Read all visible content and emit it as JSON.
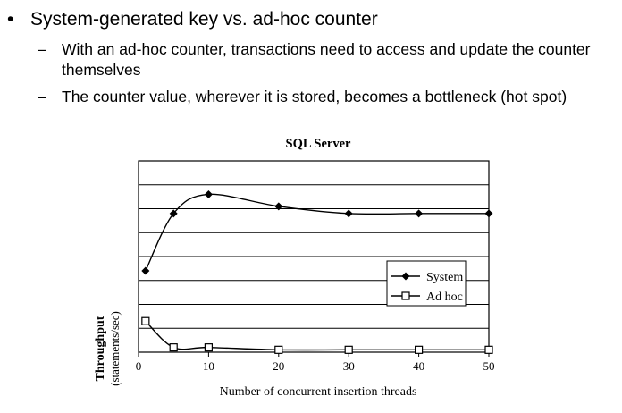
{
  "slide": {
    "bullet": "•",
    "heading": "System-generated key vs. ad-hoc counter",
    "sub_dash": "–",
    "subpoints": [
      "With an ad-hoc counter, transactions need to access and update the counter themselves",
      "The counter value, wherever it is stored, becomes a bottleneck (hot spot)"
    ]
  },
  "chart_data": {
    "type": "line",
    "title": "SQL Server",
    "xlabel": "Number of concurrent insertion threads",
    "ylabel_line1": "Throughput",
    "ylabel_line2": "(statements/sec)",
    "xlim": [
      0,
      50
    ],
    "ylim": [
      0,
      8
    ],
    "x_ticks": [
      "0",
      "10",
      "20",
      "30",
      "40",
      "50"
    ],
    "grid": true,
    "legend_position": "right",
    "series": [
      {
        "name": "System",
        "marker": "filled-diamond",
        "x": [
          1,
          5,
          10,
          20,
          30,
          40,
          50
        ],
        "y": [
          3.4,
          5.8,
          6.6,
          6.1,
          5.8,
          5.8,
          5.8
        ]
      },
      {
        "name": "Ad hoc",
        "marker": "open-square",
        "x": [
          1,
          5,
          10,
          20,
          30,
          40,
          50
        ],
        "y": [
          1.3,
          0.2,
          0.2,
          0.1,
          0.1,
          0.1,
          0.1
        ]
      }
    ]
  }
}
